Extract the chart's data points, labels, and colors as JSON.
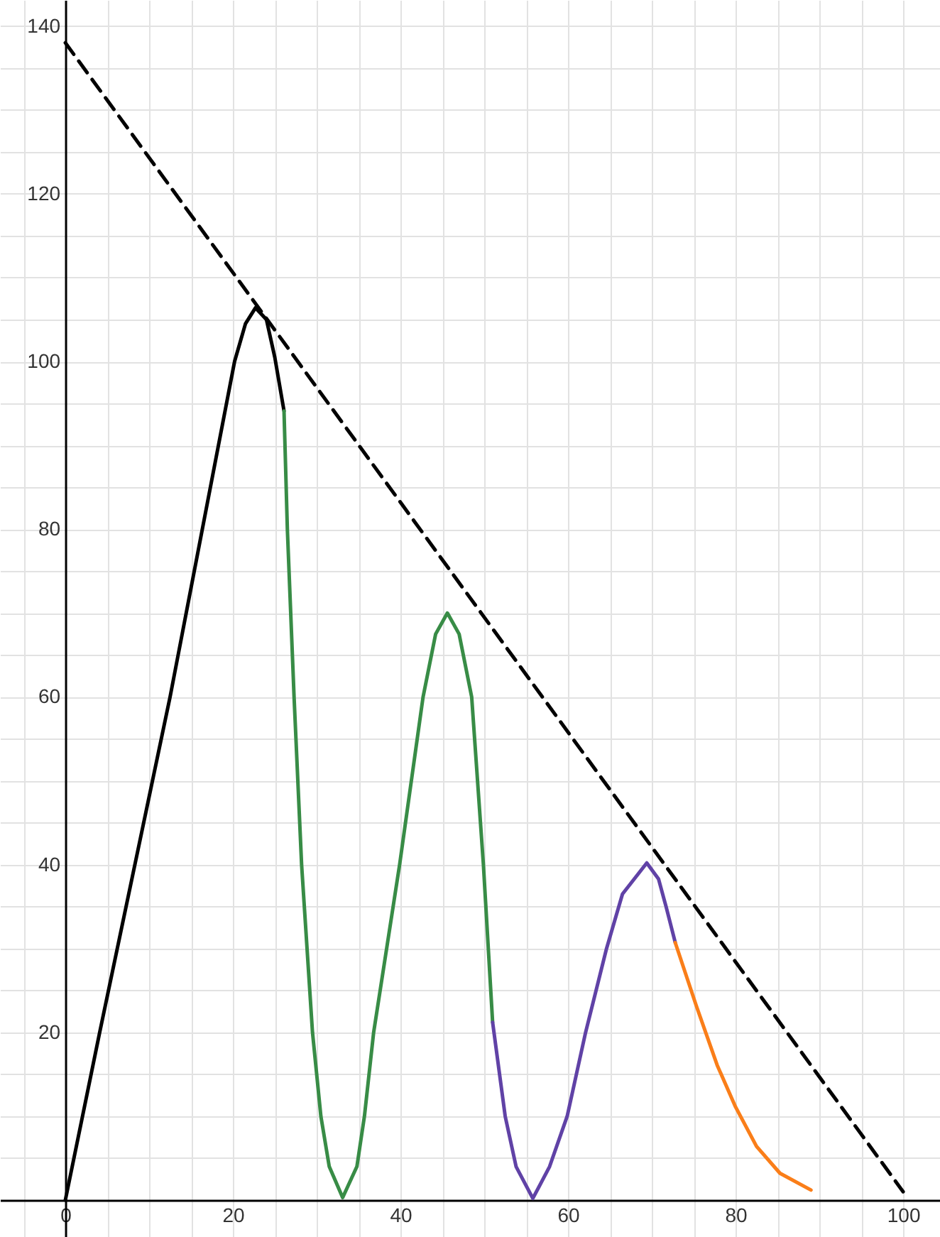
{
  "chart_data": {
    "type": "line",
    "xlim": [
      -7.8,
      104.4
    ],
    "ylim": [
      -4.4,
      143.1
    ],
    "xticks": [
      {
        "value": -5,
        "label": null
      },
      0,
      {
        "value": 5,
        "label": null
      },
      {
        "value": 10,
        "label": null
      },
      {
        "value": 15,
        "label": null
      },
      20,
      {
        "value": 25,
        "label": null
      },
      {
        "value": 30,
        "label": null
      },
      {
        "value": 35,
        "label": null
      },
      40,
      {
        "value": 45,
        "label": null
      },
      {
        "value": 50,
        "label": null
      },
      {
        "value": 55,
        "label": null
      },
      60,
      {
        "value": 65,
        "label": null
      },
      {
        "value": 70,
        "label": null
      },
      {
        "value": 75,
        "label": null
      },
      80,
      {
        "value": 85,
        "label": null
      },
      {
        "value": 90,
        "label": null
      },
      {
        "value": 95,
        "label": null
      },
      100
    ],
    "yticks": [
      {
        "value": 0,
        "label": null
      },
      {
        "value": 5,
        "label": null
      },
      {
        "value": 10,
        "label": null
      },
      {
        "value": 15,
        "label": null
      },
      20,
      {
        "value": 25,
        "label": null
      },
      {
        "value": 30,
        "label": null
      },
      {
        "value": 35,
        "label": null
      },
      40,
      {
        "value": 45,
        "label": null
      },
      {
        "value": 50,
        "label": null
      },
      {
        "value": 55,
        "label": null
      },
      60,
      {
        "value": 65,
        "label": null
      },
      {
        "value": 70,
        "label": null
      },
      {
        "value": 75,
        "label": null
      },
      80,
      {
        "value": 85,
        "label": null
      },
      {
        "value": 90,
        "label": null
      },
      {
        "value": 95,
        "label": null
      },
      100,
      {
        "value": 105,
        "label": null
      },
      {
        "value": 110,
        "label": null
      },
      {
        "value": 115,
        "label": null
      },
      120,
      {
        "value": 125,
        "label": null
      },
      {
        "value": 130,
        "label": null
      },
      {
        "value": 135,
        "label": null
      },
      140
    ],
    "grid": true,
    "marker": "none",
    "series": [
      {
        "color": "#000000",
        "line_style": "solid",
        "x": [
          0,
          4.1,
          12.5,
          20.2,
          21.5,
          22.7,
          24,
          25,
          26.1
        ],
        "values": [
          0,
          20,
          60,
          100,
          104.5,
          106.4,
          105,
          100.5,
          94.1
        ]
      },
      {
        "color": "#388c46",
        "line_style": "solid",
        "x": [
          26.1,
          26.5,
          26.9,
          27.3,
          28.2,
          29.5,
          30.5,
          31.5,
          33.1,
          34.8,
          35.7,
          36.8,
          39.9,
          42.7,
          44.2,
          45.6,
          47,
          48.5,
          49.9,
          51
        ],
        "values": [
          94.1,
          80,
          70,
          60,
          40,
          20,
          10,
          4,
          0.3,
          4,
          10,
          20,
          40,
          60,
          67.5,
          70,
          67.5,
          60,
          40,
          21.2
        ]
      },
      {
        "color": "#6042a6",
        "line_style": "solid",
        "x": [
          51,
          52.5,
          53.8,
          55.8,
          57.8,
          59.9,
          62.1,
          64.6,
          66.5,
          69.4,
          70.8,
          71.7,
          72.8
        ],
        "values": [
          21.2,
          10,
          4,
          0.2,
          4,
          10,
          20,
          30,
          36.5,
          40.2,
          38.3,
          35,
          30.7
        ]
      },
      {
        "color": "#fa7e19",
        "line_style": "solid",
        "x": [
          72.8,
          75.3,
          77.8,
          80,
          82.5,
          85.3,
          89
        ],
        "values": [
          30.7,
          23.2,
          16.1,
          11.1,
          6.4,
          3.2,
          1.2
        ]
      },
      {
        "color": "#000000",
        "line_style": "dashed",
        "x": [
          0,
          100
        ],
        "values": [
          138,
          1
        ]
      }
    ]
  }
}
